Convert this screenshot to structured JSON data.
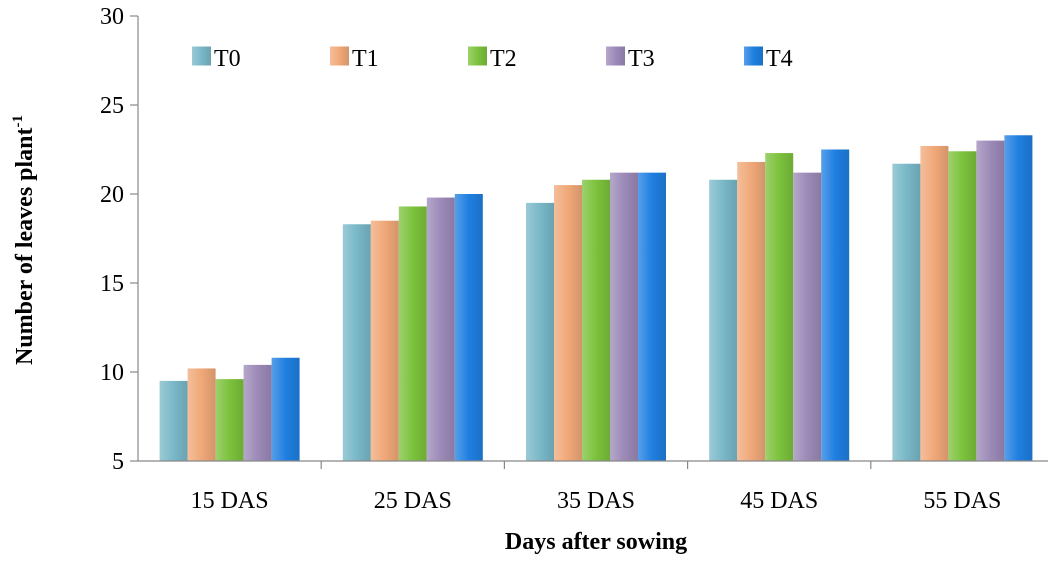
{
  "chart_data": {
    "type": "bar",
    "title": "",
    "xlabel": "Days after sowing",
    "ylabel": "Number of leaves plant",
    "ylabel_superscript": "-1",
    "ylim": [
      5,
      30
    ],
    "yticks": [
      5,
      10,
      15,
      20,
      25,
      30
    ],
    "grid": false,
    "legend_position": "top-left",
    "categories": [
      "15 DAS",
      "25 DAS",
      "35 DAS",
      "45 DAS",
      "55 DAS"
    ],
    "series": [
      {
        "name": "T0",
        "color": "#79B8C8",
        "values": [
          9.5,
          18.3,
          19.5,
          20.8,
          21.7
        ]
      },
      {
        "name": "T1",
        "color": "#F0A878",
        "values": [
          10.2,
          18.5,
          20.5,
          21.8,
          22.7
        ]
      },
      {
        "name": "T2",
        "color": "#7CC23C",
        "values": [
          9.6,
          19.3,
          20.8,
          22.3,
          22.4
        ]
      },
      {
        "name": "T3",
        "color": "#9C8AB8",
        "values": [
          10.4,
          19.8,
          21.2,
          21.2,
          23.0
        ]
      },
      {
        "name": "T4",
        "color": "#1F7FE0",
        "values": [
          10.8,
          20.0,
          21.2,
          22.5,
          23.3
        ]
      }
    ]
  }
}
